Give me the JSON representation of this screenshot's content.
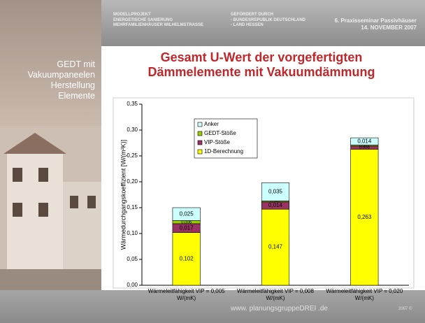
{
  "header": {
    "project": [
      "MODELLPROJEKT",
      "ENERGETISCHE SANIERUNG",
      "MEHRFAMILIENHÄUSER WILHELMSTRASSE"
    ],
    "funding": [
      "GEFÖRDERT DURCH",
      "- BUNDESREPUBLIK DEUTSCHLAND",
      "- LAND HESSEN"
    ],
    "event": [
      "6. Praxisseminar Passivhäuser",
      "14. NOVEMBER 2007"
    ]
  },
  "sidebar": {
    "title": [
      "GEDT mit",
      "Vakuumpaneelen",
      "Herstellung",
      "Elemente"
    ]
  },
  "footer": {
    "website": "www. planungsgruppeDREI .de",
    "copyright": "2007 ©"
  },
  "chart_data": {
    "type": "stacked_bar",
    "title": [
      "Gesamt U-Wert der vorgefertigten",
      "Dämmelemente mit Vakuumdämmung"
    ],
    "y_label": "Wärmedurchgangskoeffizient [W/(m²K)]",
    "categories": [
      "Wärmeleitfähigkeit VIP = 0,005 W/(mK)",
      "Wärmeleitfähigkeit VIP = 0,008 W/(mK)",
      "Wärmeleitfähigkeit VIP = 0,020 W/(mK)"
    ],
    "series": [
      {
        "name": "1D-Berechnung",
        "color": "#ffff00",
        "values": [
          0.102,
          0.147,
          0.263
        ],
        "value_labels": [
          "0,102",
          "0,147",
          "0,263"
        ]
      },
      {
        "name": "VIP-Stöße",
        "color": "#993366",
        "values": [
          0.017,
          0.014,
          0.006
        ],
        "value_labels": [
          "0,017",
          "0,014",
          "0,006"
        ]
      },
      {
        "name": "GEDT-Stöße",
        "color": "#99cc00",
        "values": [
          0.006,
          0.002,
          0.002
        ],
        "value_labels": [
          "0,006",
          "0,002",
          "0,002"
        ]
      },
      {
        "name": "Anker",
        "color": "#ccffff",
        "values": [
          0.025,
          0.035,
          0.014
        ],
        "value_labels": [
          "0,025",
          "0,035",
          "0,014"
        ]
      }
    ],
    "ylim": [
      0,
      0.35
    ],
    "yticks": [
      {
        "value": 0,
        "label": "0,00"
      },
      {
        "value": 0.05,
        "label": "0,05"
      },
      {
        "value": 0.1,
        "label": "0,10"
      },
      {
        "value": 0.15,
        "label": "0,15"
      },
      {
        "value": 0.2,
        "label": "0,20"
      },
      {
        "value": 0.25,
        "label": "0,25"
      },
      {
        "value": 0.3,
        "label": "0,30"
      },
      {
        "value": 0.35,
        "label": "0,35"
      }
    ],
    "legend": "upper-left"
  }
}
